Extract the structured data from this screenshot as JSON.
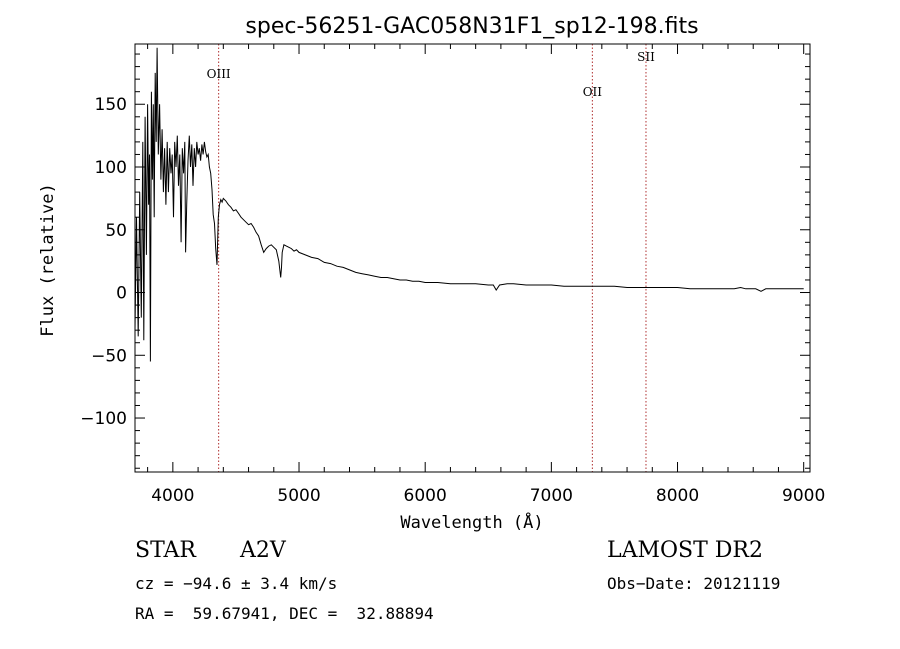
{
  "chart_data": {
    "type": "line",
    "title": "spec-56251-GAC058N31F1_sp12-198.fits",
    "xlabel": "Wavelength (Å)",
    "ylabel": "Flux (relative)",
    "xlim": [
      3700,
      9050
    ],
    "ylim": [
      -143,
      198
    ],
    "xticks": [
      4000,
      5000,
      6000,
      7000,
      8000,
      9000
    ],
    "yticks": [
      -100,
      -50,
      0,
      50,
      100,
      150
    ],
    "grid": false,
    "line_color": "#000000",
    "series": [
      {
        "x": [
          3700,
          3712,
          3725,
          3737,
          3750,
          3762,
          3770,
          3780,
          3790,
          3800,
          3808,
          3815,
          3822,
          3830,
          3838,
          3845,
          3852,
          3860,
          3868,
          3875,
          3885,
          3895,
          3905,
          3915,
          3925,
          3935,
          3945,
          3955,
          3965,
          3975,
          3985,
          3995,
          4005,
          4015,
          4025,
          4035,
          4045,
          4055,
          4065,
          4075,
          4085,
          4095,
          4101,
          4110,
          4120,
          4130,
          4140,
          4150,
          4160,
          4170,
          4180,
          4190,
          4200,
          4210,
          4220,
          4230,
          4240,
          4250,
          4260,
          4270,
          4280,
          4290,
          4300,
          4310,
          4320,
          4330,
          4340,
          4350,
          4360,
          4370,
          4380,
          4390,
          4400,
          4420,
          4440,
          4460,
          4480,
          4500,
          4520,
          4540,
          4560,
          4580,
          4600,
          4620,
          4640,
          4660,
          4680,
          4700,
          4720,
          4740,
          4760,
          4780,
          4800,
          4820,
          4840,
          4855,
          4861,
          4867,
          4880,
          4900,
          4920,
          4940,
          4960,
          4980,
          5000,
          5050,
          5100,
          5150,
          5200,
          5250,
          5300,
          5350,
          5400,
          5450,
          5500,
          5550,
          5600,
          5650,
          5700,
          5750,
          5800,
          5850,
          5900,
          5950,
          6000,
          6100,
          6200,
          6300,
          6400,
          6500,
          6540,
          6563,
          6590,
          6650,
          6700,
          6800,
          6900,
          7000,
          7100,
          7200,
          7300,
          7400,
          7500,
          7600,
          7700,
          7800,
          7900,
          8000,
          8100,
          8200,
          8300,
          8350,
          8400,
          8450,
          8500,
          8540,
          8580,
          8620,
          8662,
          8700,
          8800,
          8900,
          9000
        ],
        "values": [
          -30,
          60,
          -35,
          80,
          -20,
          120,
          -38,
          140,
          30,
          150,
          70,
          110,
          -55,
          160,
          90,
          150,
          60,
          175,
          120,
          195,
          110,
          150,
          90,
          130,
          80,
          115,
          70,
          120,
          80,
          115,
          95,
          110,
          60,
          120,
          100,
          125,
          85,
          110,
          40,
          115,
          95,
          120,
          32,
          70,
          105,
          125,
          100,
          118,
          85,
          115,
          100,
          120,
          110,
          115,
          105,
          118,
          110,
          120,
          112,
          108,
          110,
          100,
          95,
          82,
          62,
          55,
          35,
          22,
          60,
          70,
          74,
          72,
          75,
          73,
          70,
          68,
          65,
          66,
          63,
          60,
          58,
          56,
          54,
          55,
          52,
          48,
          45,
          38,
          32,
          35,
          37,
          38,
          36,
          34,
          25,
          12,
          20,
          32,
          38,
          37,
          36,
          35,
          33,
          34,
          32,
          30,
          28,
          27,
          24,
          23,
          21,
          20,
          18,
          16,
          15,
          14,
          13,
          12,
          12,
          11,
          10,
          10,
          9,
          9,
          8,
          8,
          7,
          7,
          7,
          6,
          6,
          2,
          6,
          7,
          7,
          6,
          6,
          6,
          5,
          5,
          5,
          5,
          5,
          4,
          4,
          4,
          4,
          4,
          3,
          3,
          3,
          3,
          3,
          3,
          4,
          3,
          3,
          3,
          1,
          3,
          3,
          3,
          3
        ]
      }
    ],
    "lines": [
      {
        "label": "OIII",
        "x": 4363
      },
      {
        "label": "OII",
        "x": 7325
      },
      {
        "label": "SII",
        "x": 7750
      }
    ]
  },
  "info": {
    "object_type": "STAR",
    "spectral_class": "A2V",
    "survey": "LAMOST DR2",
    "cz": "cz = −94.6 ± 3.4 km/s",
    "obs_date": "Obs−Date: 20121119",
    "coords": "RA =  59.67941, DEC =  32.88894"
  }
}
